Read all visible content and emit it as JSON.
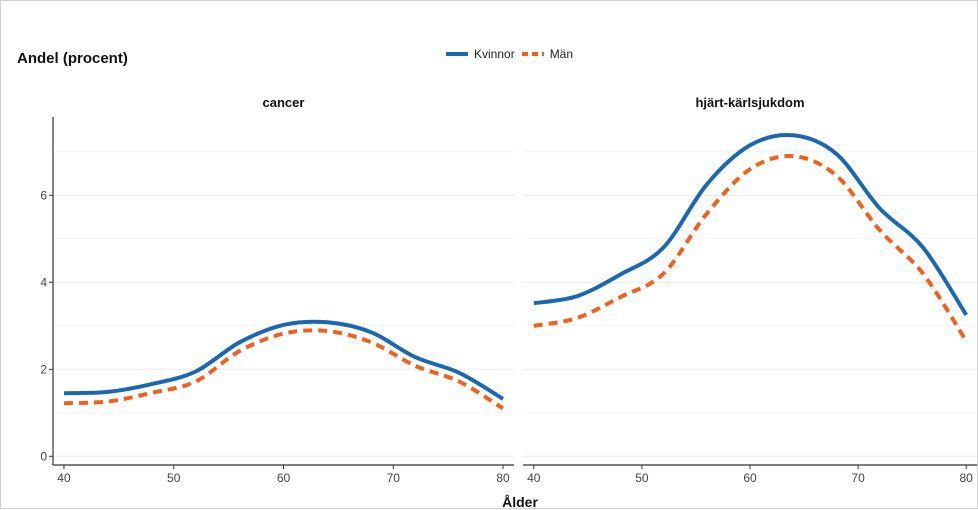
{
  "chart_data": {
    "type": "line",
    "ylabel": "Andel (procent)",
    "xlabel": "Ålder",
    "legend": {
      "placement": "top-center",
      "entries": [
        "Kvinnor",
        "Män"
      ]
    },
    "colors": {
      "Kvinnor": "#1a68b2",
      "Män": "#f2611c"
    },
    "xlim": [
      39,
      81
    ],
    "ylim": [
      -0.2,
      7.8
    ],
    "x_ticks": [
      40,
      50,
      60,
      70,
      80
    ],
    "y_ticks": [
      0,
      2,
      4,
      6
    ],
    "grid": "horizontal",
    "panels": [
      {
        "title": "cancer",
        "x": [
          40,
          44,
          48,
          52,
          56,
          60,
          64,
          68,
          72,
          76,
          80
        ],
        "series": [
          {
            "name": "Kvinnor",
            "style": "solid",
            "values": [
              1.45,
              1.48,
              1.66,
              1.95,
              2.62,
              3.02,
              3.08,
              2.85,
              2.28,
              1.92,
              1.32
            ]
          },
          {
            "name": "Män",
            "style": "dashed",
            "values": [
              1.22,
              1.26,
              1.46,
              1.72,
              2.42,
              2.82,
              2.88,
              2.62,
              2.08,
              1.72,
              1.1
            ]
          }
        ]
      },
      {
        "title": "hjärt-kärlsjukdom",
        "x": [
          40,
          44,
          48,
          52,
          56,
          60,
          64,
          68,
          72,
          76,
          80
        ],
        "series": [
          {
            "name": "Kvinnor",
            "style": "solid",
            "values": [
              3.52,
              3.68,
              4.18,
              4.8,
              6.25,
              7.15,
              7.38,
              6.95,
              5.7,
              4.8,
              3.25
            ]
          },
          {
            "name": "Män",
            "style": "dashed",
            "values": [
              3.0,
              3.18,
              3.66,
              4.2,
              5.58,
              6.6,
              6.9,
              6.45,
              5.2,
              4.2,
              2.65
            ]
          }
        ]
      }
    ]
  }
}
